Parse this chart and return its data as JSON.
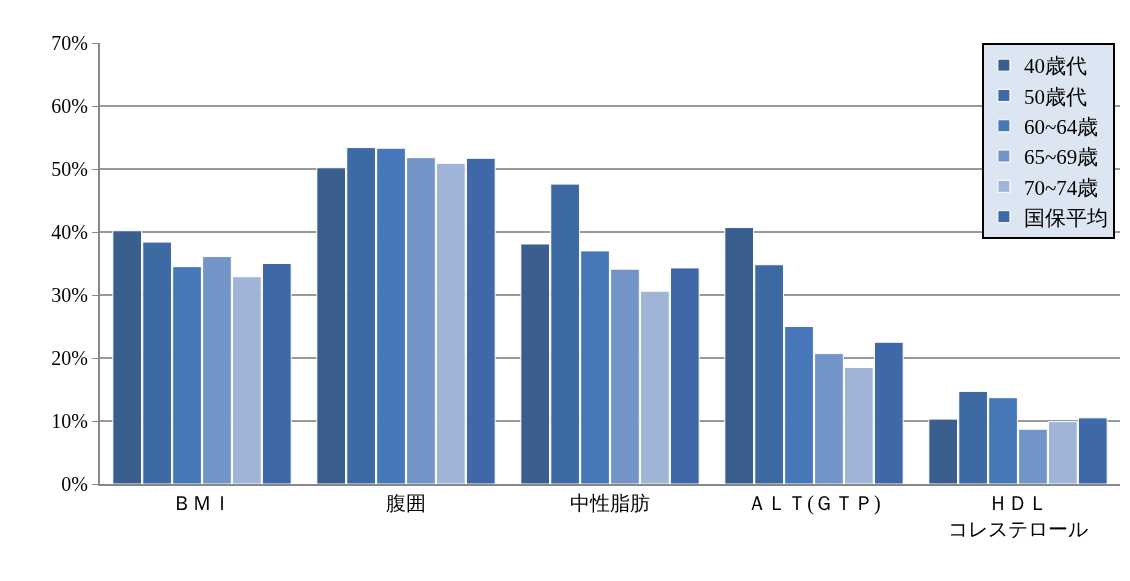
{
  "chart_data": {
    "type": "bar",
    "categories": [
      "ＢＭＩ",
      "腹囲",
      "中性脂肪",
      "ＡＬＴ(ＧＴＰ)",
      "ＨＤＬコレステロール"
    ],
    "series": [
      {
        "name": "40歳代",
        "color": "#3a5f8f",
        "values": [
          40.2,
          50.2,
          38.1,
          40.7,
          10.3
        ]
      },
      {
        "name": "50歳代",
        "color": "#3d6aa3",
        "values": [
          38.4,
          53.4,
          47.6,
          34.8,
          14.7
        ]
      },
      {
        "name": "60~64歳",
        "color": "#4677b8",
        "values": [
          34.5,
          53.3,
          37.0,
          25.0,
          13.7
        ]
      },
      {
        "name": "65~69歳",
        "color": "#7394c6",
        "values": [
          36.1,
          51.8,
          34.1,
          20.7,
          8.7
        ]
      },
      {
        "name": "70~74歳",
        "color": "#a0b4d8",
        "values": [
          32.9,
          50.9,
          30.6,
          18.5,
          9.9
        ]
      },
      {
        "name": "国保平均",
        "color": "#3f68a8",
        "values": [
          35.0,
          51.7,
          34.3,
          22.5,
          10.5
        ]
      }
    ],
    "ylim": [
      0,
      70
    ],
    "yticks": [
      {
        "value": 0,
        "label": "0%"
      },
      {
        "value": 10,
        "label": "10%"
      },
      {
        "value": 20,
        "label": "20%"
      },
      {
        "value": 30,
        "label": "30%"
      },
      {
        "value": 40,
        "label": "40%"
      },
      {
        "value": 50,
        "label": "50%"
      },
      {
        "value": 60,
        "label": "60%"
      },
      {
        "value": 70,
        "label": "70%"
      }
    ],
    "grid": "y",
    "legend": "top right"
  }
}
